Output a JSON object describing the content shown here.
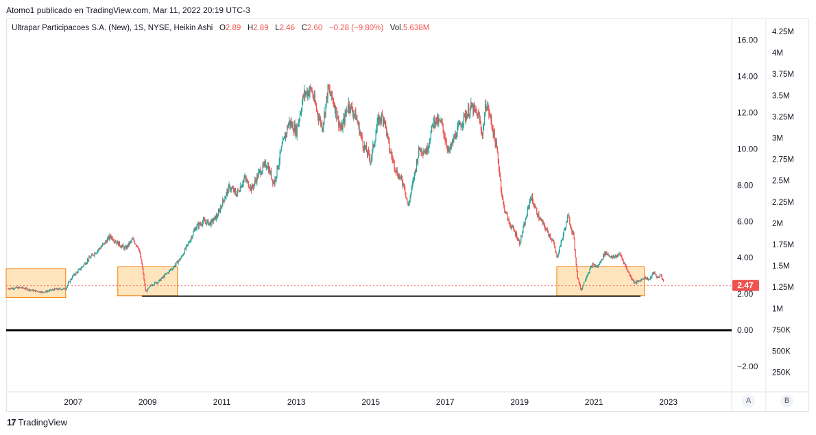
{
  "header": {
    "title": "Atomo1 publicado en TradingView.com, Mar 11, 2022 20:19 UTC-3"
  },
  "legend": {
    "symbol": "Ultrapar Participacoes S.A. (New), 1S, NYSE, Heikin Ashi",
    "o_label": "O",
    "o_value": "2.89",
    "h_label": "H",
    "h_value": "2.89",
    "l_label": "L",
    "l_value": "2.46",
    "c_label": "C",
    "c_value": "2.60",
    "change": "−0.28 (−9.80%)",
    "vol_label": "Vol.",
    "vol_value": "5.638M"
  },
  "footer": {
    "brand": "TradingView"
  },
  "axis_buttons": {
    "a": "A",
    "b": "B"
  },
  "colors": {
    "up": "#26a69a",
    "down": "#ef5350",
    "box_fill": "#ffe0b2",
    "box_border": "#f57c00",
    "price_line": "#ef5350",
    "zero_line": "#000000"
  },
  "chart_data": {
    "type": "line",
    "style": "heikin-ashi-candles",
    "x_ticks": [
      "2007",
      "2009",
      "2011",
      "2013",
      "2015",
      "2017",
      "2019",
      "2021",
      "2023"
    ],
    "x_tick_years": [
      2007,
      2009,
      2011,
      2013,
      2015,
      2017,
      2019,
      2021,
      2023
    ],
    "xlim": [
      2005.2,
      2024.7
    ],
    "price_ticks": [
      "16.00",
      "14.00",
      "12.00",
      "10.00",
      "8.00",
      "6.00",
      "4.00",
      "2.00",
      "0.00",
      "−2.00"
    ],
    "price_tick_values": [
      16,
      14,
      12,
      10,
      8,
      6,
      4,
      2,
      0,
      -2
    ],
    "ylim": [
      -3.4,
      17.2
    ],
    "volume_ticks": [
      "4.25M",
      "4M",
      "3.75M",
      "3.5M",
      "3.25M",
      "3M",
      "2.75M",
      "2.5M",
      "2.25M",
      "2M",
      "1.75M",
      "1.5M",
      "1.25M",
      "1M",
      "750K",
      "500K",
      "250K"
    ],
    "last_price": "2.47",
    "last_price_value": 2.47,
    "series": [
      {
        "points": [
          [
            2005.25,
            2.3
          ],
          [
            2005.6,
            2.35
          ],
          [
            2005.9,
            2.2
          ],
          [
            2006.2,
            2.1
          ],
          [
            2006.5,
            2.25
          ],
          [
            2006.8,
            2.3
          ],
          [
            2006.9,
            2.7
          ],
          [
            2007.0,
            3.0
          ],
          [
            2007.2,
            3.4
          ],
          [
            2007.4,
            3.9
          ],
          [
            2007.6,
            4.3
          ],
          [
            2007.8,
            4.7
          ],
          [
            2008.0,
            5.2
          ],
          [
            2008.2,
            4.8
          ],
          [
            2008.4,
            4.5
          ],
          [
            2008.6,
            5.0
          ],
          [
            2008.75,
            4.6
          ],
          [
            2008.85,
            3.6
          ],
          [
            2008.95,
            2.1
          ],
          [
            2009.1,
            2.5
          ],
          [
            2009.3,
            2.7
          ],
          [
            2009.5,
            3.1
          ],
          [
            2009.7,
            3.5
          ],
          [
            2009.9,
            4.0
          ],
          [
            2010.1,
            4.8
          ],
          [
            2010.3,
            5.7
          ],
          [
            2010.5,
            6.0
          ],
          [
            2010.7,
            5.9
          ],
          [
            2010.9,
            6.4
          ],
          [
            2011.0,
            7.0
          ],
          [
            2011.2,
            7.9
          ],
          [
            2011.4,
            7.5
          ],
          [
            2011.6,
            8.4
          ],
          [
            2011.8,
            7.8
          ],
          [
            2012.0,
            8.7
          ],
          [
            2012.2,
            9.2
          ],
          [
            2012.4,
            8.1
          ],
          [
            2012.6,
            10.0
          ],
          [
            2012.8,
            11.5
          ],
          [
            2013.0,
            11.0
          ],
          [
            2013.2,
            13.0
          ],
          [
            2013.4,
            13.3
          ],
          [
            2013.55,
            12.1
          ],
          [
            2013.7,
            11.2
          ],
          [
            2013.85,
            13.3
          ],
          [
            2014.0,
            12.6
          ],
          [
            2014.2,
            11.0
          ],
          [
            2014.4,
            12.5
          ],
          [
            2014.6,
            11.8
          ],
          [
            2014.8,
            10.2
          ],
          [
            2015.0,
            9.4
          ],
          [
            2015.2,
            11.6
          ],
          [
            2015.35,
            11.8
          ],
          [
            2015.5,
            10.0
          ],
          [
            2015.7,
            8.7
          ],
          [
            2015.9,
            8.0
          ],
          [
            2016.0,
            6.8
          ],
          [
            2016.1,
            7.8
          ],
          [
            2016.3,
            10.0
          ],
          [
            2016.5,
            9.9
          ],
          [
            2016.7,
            11.6
          ],
          [
            2016.9,
            11.4
          ],
          [
            2017.1,
            9.8
          ],
          [
            2017.3,
            10.9
          ],
          [
            2017.5,
            11.7
          ],
          [
            2017.7,
            12.3
          ],
          [
            2017.9,
            11.8
          ],
          [
            2018.0,
            10.8
          ],
          [
            2018.1,
            12.6
          ],
          [
            2018.25,
            11.4
          ],
          [
            2018.4,
            9.8
          ],
          [
            2018.55,
            7.0
          ],
          [
            2018.7,
            6.0
          ],
          [
            2018.9,
            5.3
          ],
          [
            2019.0,
            4.8
          ],
          [
            2019.15,
            6.0
          ],
          [
            2019.3,
            7.4
          ],
          [
            2019.5,
            6.3
          ],
          [
            2019.7,
            5.6
          ],
          [
            2019.9,
            4.9
          ],
          [
            2020.0,
            4.0
          ],
          [
            2020.15,
            5.1
          ],
          [
            2020.3,
            6.3
          ],
          [
            2020.45,
            5.2
          ],
          [
            2020.55,
            3.0
          ],
          [
            2020.65,
            2.2
          ],
          [
            2020.8,
            3.0
          ],
          [
            2020.95,
            3.6
          ],
          [
            2021.1,
            3.5
          ],
          [
            2021.3,
            4.3
          ],
          [
            2021.5,
            4.0
          ],
          [
            2021.7,
            4.2
          ],
          [
            2021.9,
            3.3
          ],
          [
            2022.0,
            2.9
          ],
          [
            2022.1,
            2.6
          ],
          [
            2022.2,
            2.7
          ],
          [
            2022.35,
            2.9
          ],
          [
            2022.5,
            2.8
          ],
          [
            2022.6,
            3.2
          ],
          [
            2022.7,
            2.9
          ],
          [
            2022.8,
            3.05
          ],
          [
            2022.88,
            2.6
          ]
        ]
      }
    ],
    "boxes": [
      {
        "x": [
          2005.2,
          2006.8
        ],
        "y": [
          1.8,
          3.4
        ]
      },
      {
        "x": [
          2008.2,
          2009.8
        ],
        "y": [
          1.9,
          3.5
        ]
      },
      {
        "x": [
          2020.0,
          2022.35
        ],
        "y": [
          1.9,
          3.5
        ]
      }
    ],
    "support_line": {
      "x": [
        2008.85,
        2022.25
      ],
      "y": 1.88
    },
    "zero_line": 0
  }
}
